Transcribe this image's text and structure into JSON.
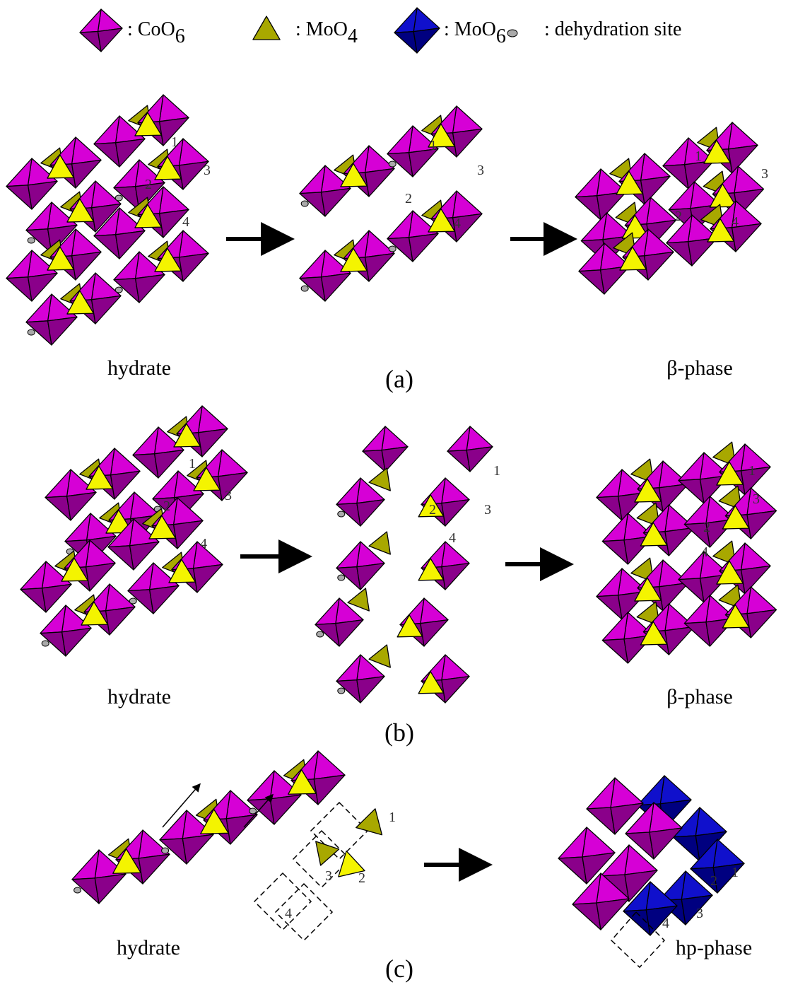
{
  "legend": [
    {
      "label": ": CoO",
      "sub": "6"
    },
    {
      "label": ": MoO",
      "sub": "4"
    },
    {
      "label": ": MoO",
      "sub": "6"
    },
    {
      "label": ": dehydration site"
    }
  ],
  "panels": [
    {
      "label": "(a)",
      "start": "hydrate",
      "end": "β-phase",
      "numbers": [
        [
          "1",
          "2",
          "3",
          "4"
        ],
        [
          "1",
          "2",
          "3",
          "4"
        ],
        [
          "1",
          "2",
          "3",
          "4"
        ]
      ]
    },
    {
      "label": "(b)",
      "start": "hydrate",
      "end": "β-phase",
      "numbers": [
        [
          "1",
          "2",
          "3",
          "4"
        ],
        [
          "1",
          "2",
          "3",
          "4"
        ],
        [
          "1",
          "2",
          "3",
          "4"
        ]
      ]
    },
    {
      "label": "(c)",
      "start": "hydrate",
      "end": "hp-phase",
      "numbers": [
        [
          "1",
          "2",
          "3",
          "4"
        ],
        [
          "1",
          "2",
          "3",
          "4"
        ]
      ]
    }
  ]
}
